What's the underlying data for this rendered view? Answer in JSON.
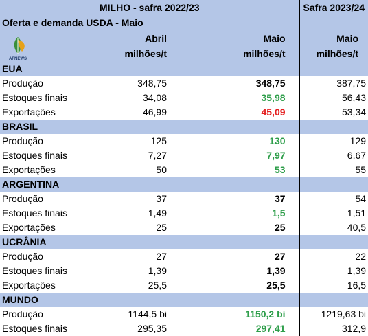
{
  "header": {
    "title_main": "MILHO - safra 2022/23",
    "title_next": "Safra 2023/24",
    "subtitle": "Oferta e demanda USDA - Maio",
    "logo_text": "AFNEWS",
    "col1": [
      "Abril",
      "milhões/t"
    ],
    "col2": [
      "Maio",
      "milhões/t"
    ],
    "col3": [
      "Maio",
      "milhões/t"
    ]
  },
  "colors": {
    "header_bg": "#b4c6e7",
    "green": "#2e9e4a",
    "red": "#e41f1f"
  },
  "sections": [
    {
      "name": "EUA",
      "rows": [
        {
          "label": "Produção",
          "abril": "348,75",
          "maio": "348,75",
          "maio_style": "bold",
          "next": "387,75"
        },
        {
          "label": "Estoques finais",
          "abril": "34,08",
          "maio": "35,98",
          "maio_style": "green",
          "next": "56,43"
        },
        {
          "label": "Exportações",
          "abril": "46,99",
          "maio": "45,09",
          "maio_style": "red",
          "next": "53,34"
        }
      ]
    },
    {
      "name": "BRASIL",
      "rows": [
        {
          "label": "Produção",
          "abril": "125",
          "maio": "130",
          "maio_style": "green",
          "next": "129"
        },
        {
          "label": "Estoques finais",
          "abril": "7,27",
          "maio": "7,97",
          "maio_style": "green",
          "next": "6,67"
        },
        {
          "label": "Exportações",
          "abril": "50",
          "maio": "53",
          "maio_style": "green",
          "next": "55"
        }
      ]
    },
    {
      "name": "ARGENTINA",
      "rows": [
        {
          "label": "Produção",
          "abril": "37",
          "maio": "37",
          "maio_style": "bold",
          "next": "54"
        },
        {
          "label": "Estoques finais",
          "abril": "1,49",
          "maio": "1,5",
          "maio_style": "green",
          "next": "1,51"
        },
        {
          "label": "Exportações",
          "abril": "25",
          "maio": "25",
          "maio_style": "bold",
          "next": "40,5"
        }
      ]
    },
    {
      "name": "UCRÂNIA",
      "rows": [
        {
          "label": "Produção",
          "abril": "27",
          "maio": "27",
          "maio_style": "bold",
          "next": "22"
        },
        {
          "label": "Estoques finais",
          "abril": "1,39",
          "maio": "1,39",
          "maio_style": "bold",
          "next": "1,39"
        },
        {
          "label": "Exportações",
          "abril": "25,5",
          "maio": "25,5",
          "maio_style": "bold",
          "next": "16,5"
        }
      ]
    },
    {
      "name": "MUNDO",
      "rows": [
        {
          "label": "Produção",
          "abril": "1144,5 bi",
          "maio": "1150,2 bi",
          "maio_style": "green",
          "next": "1219,63 bi"
        },
        {
          "label": "Estoques finais",
          "abril": "295,35",
          "maio": "297,41",
          "maio_style": "green",
          "next": "312,9"
        }
      ]
    }
  ]
}
